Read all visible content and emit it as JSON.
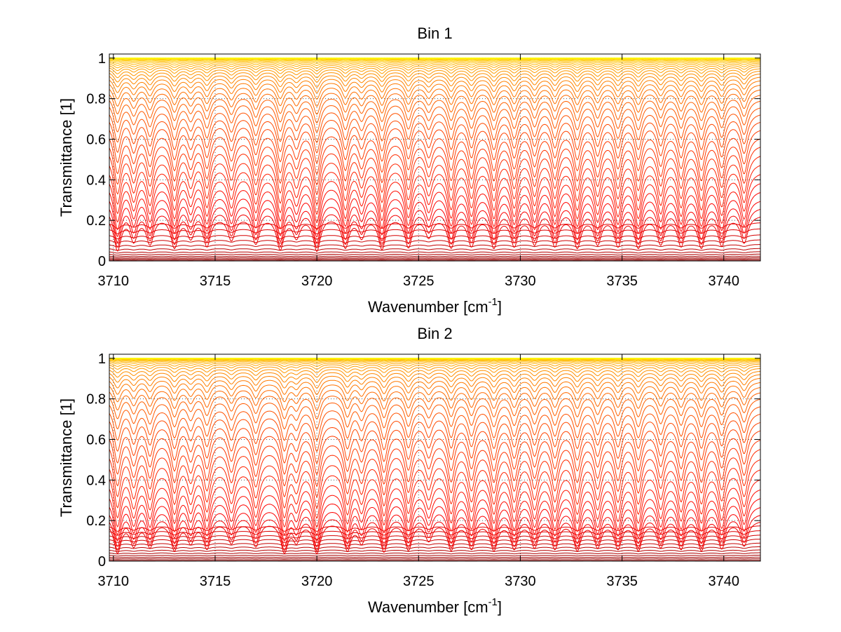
{
  "chart_data": [
    {
      "type": "line",
      "title": "Bin 1",
      "xlabel": "Wavenumber [cm",
      "xlabel_sup": "-1",
      "xlabel_tail": "]",
      "ylabel": "Transmittance [1]",
      "xlim": [
        3709.8,
        3741.8
      ],
      "ylim": [
        0,
        1.02
      ],
      "xticks": [
        3710,
        3715,
        3720,
        3725,
        3730,
        3735,
        3740
      ],
      "xtick_labels": [
        "3710",
        "3715",
        "3720",
        "3725",
        "3730",
        "3735",
        "3740"
      ],
      "yticks": [
        0,
        0.2,
        0.4,
        0.6,
        0.8,
        1
      ],
      "ytick_labels": [
        "0",
        "0.2",
        "0.4",
        "0.6",
        "0.8",
        "1"
      ],
      "grid": true,
      "colormap": "jet",
      "num_series": 50,
      "series_continuum": [
        0.0,
        0.004,
        0.01,
        0.016,
        0.024,
        0.034,
        0.046,
        0.062,
        0.082,
        0.105,
        0.13,
        0.16,
        0.19,
        0.23,
        0.27,
        0.31,
        0.355,
        0.4,
        0.445,
        0.49,
        0.535,
        0.58,
        0.62,
        0.66,
        0.7,
        0.735,
        0.768,
        0.8,
        0.828,
        0.853,
        0.875,
        0.895,
        0.912,
        0.927,
        0.94,
        0.951,
        0.961,
        0.969,
        0.976,
        0.982,
        0.987,
        0.991,
        0.994,
        0.996,
        0.998,
        0.999,
        0.9995,
        1.0,
        1.0,
        1.0
      ],
      "absorption_lines": [
        {
          "x": 3710.2,
          "depth": 1.0
        },
        {
          "x": 3711.0,
          "depth": 0.7
        },
        {
          "x": 3711.8,
          "depth": 0.8
        },
        {
          "x": 3713.0,
          "depth": 0.9
        },
        {
          "x": 3713.8,
          "depth": 0.6
        },
        {
          "x": 3714.6,
          "depth": 0.85
        },
        {
          "x": 3715.8,
          "depth": 0.7
        },
        {
          "x": 3717.0,
          "depth": 0.8
        },
        {
          "x": 3718.2,
          "depth": 0.95
        },
        {
          "x": 3719.0,
          "depth": 0.6
        },
        {
          "x": 3720.0,
          "depth": 1.0
        },
        {
          "x": 3721.4,
          "depth": 0.9
        },
        {
          "x": 3722.2,
          "depth": 0.6
        },
        {
          "x": 3723.2,
          "depth": 0.95
        },
        {
          "x": 3724.5,
          "depth": 0.9
        },
        {
          "x": 3725.5,
          "depth": 0.6
        },
        {
          "x": 3726.6,
          "depth": 0.9
        },
        {
          "x": 3727.6,
          "depth": 0.85
        },
        {
          "x": 3728.7,
          "depth": 0.9
        },
        {
          "x": 3729.7,
          "depth": 0.85
        },
        {
          "x": 3730.7,
          "depth": 0.8
        },
        {
          "x": 3731.7,
          "depth": 0.85
        },
        {
          "x": 3732.8,
          "depth": 0.9
        },
        {
          "x": 3733.8,
          "depth": 0.8
        },
        {
          "x": 3734.8,
          "depth": 0.85
        },
        {
          "x": 3735.8,
          "depth": 0.9
        },
        {
          "x": 3736.9,
          "depth": 0.8
        },
        {
          "x": 3737.9,
          "depth": 0.85
        },
        {
          "x": 3738.9,
          "depth": 0.9
        },
        {
          "x": 3739.9,
          "depth": 0.85
        },
        {
          "x": 3741.0,
          "depth": 0.8
        }
      ]
    },
    {
      "type": "line",
      "title": "Bin 2",
      "xlabel": "Wavenumber [cm",
      "xlabel_sup": "-1",
      "xlabel_tail": "]",
      "ylabel": "Transmittance [1]",
      "xlim": [
        3709.8,
        3741.8
      ],
      "ylim": [
        0,
        1.02
      ],
      "xticks": [
        3710,
        3715,
        3720,
        3725,
        3730,
        3735,
        3740
      ],
      "xtick_labels": [
        "3710",
        "3715",
        "3720",
        "3725",
        "3730",
        "3735",
        "3740"
      ],
      "yticks": [
        0,
        0.2,
        0.4,
        0.6,
        0.8,
        1
      ],
      "ytick_labels": [
        "0",
        "0.2",
        "0.4",
        "0.6",
        "0.8",
        "1"
      ],
      "grid": true,
      "colormap": "jet",
      "num_series": 50,
      "series_continuum": [
        0.0,
        0.005,
        0.012,
        0.02,
        0.03,
        0.042,
        0.056,
        0.072,
        0.09,
        0.11,
        0.13,
        0.152,
        0.176,
        0.205,
        0.24,
        0.28,
        0.325,
        0.37,
        0.42,
        0.47,
        0.52,
        0.57,
        0.615,
        0.66,
        0.7,
        0.74,
        0.775,
        0.81,
        0.84,
        0.865,
        0.888,
        0.908,
        0.925,
        0.94,
        0.953,
        0.964,
        0.973,
        0.98,
        0.986,
        0.99,
        0.993,
        0.995,
        0.997,
        0.998,
        0.999,
        0.9995,
        1.0,
        1.0,
        1.0,
        1.0
      ],
      "absorption_lines": [
        {
          "x": 3710.2,
          "depth": 1.0
        },
        {
          "x": 3711.0,
          "depth": 0.75
        },
        {
          "x": 3711.8,
          "depth": 0.8
        },
        {
          "x": 3713.0,
          "depth": 0.9
        },
        {
          "x": 3713.8,
          "depth": 0.65
        },
        {
          "x": 3714.6,
          "depth": 0.85
        },
        {
          "x": 3715.8,
          "depth": 0.7
        },
        {
          "x": 3717.0,
          "depth": 0.8
        },
        {
          "x": 3718.4,
          "depth": 0.95
        },
        {
          "x": 3719.0,
          "depth": 0.6
        },
        {
          "x": 3720.0,
          "depth": 1.0
        },
        {
          "x": 3721.5,
          "depth": 0.9
        },
        {
          "x": 3722.2,
          "depth": 0.65
        },
        {
          "x": 3723.3,
          "depth": 0.95
        },
        {
          "x": 3724.5,
          "depth": 0.9
        },
        {
          "x": 3725.5,
          "depth": 0.6
        },
        {
          "x": 3726.6,
          "depth": 0.9
        },
        {
          "x": 3727.6,
          "depth": 0.85
        },
        {
          "x": 3728.7,
          "depth": 0.9
        },
        {
          "x": 3729.7,
          "depth": 0.85
        },
        {
          "x": 3730.7,
          "depth": 0.8
        },
        {
          "x": 3731.7,
          "depth": 0.85
        },
        {
          "x": 3732.8,
          "depth": 0.9
        },
        {
          "x": 3733.8,
          "depth": 0.8
        },
        {
          "x": 3734.8,
          "depth": 0.85
        },
        {
          "x": 3735.8,
          "depth": 0.9
        },
        {
          "x": 3736.9,
          "depth": 0.8
        },
        {
          "x": 3737.9,
          "depth": 0.85
        },
        {
          "x": 3738.9,
          "depth": 0.9
        },
        {
          "x": 3739.9,
          "depth": 0.85
        },
        {
          "x": 3741.0,
          "depth": 0.8
        }
      ]
    }
  ]
}
